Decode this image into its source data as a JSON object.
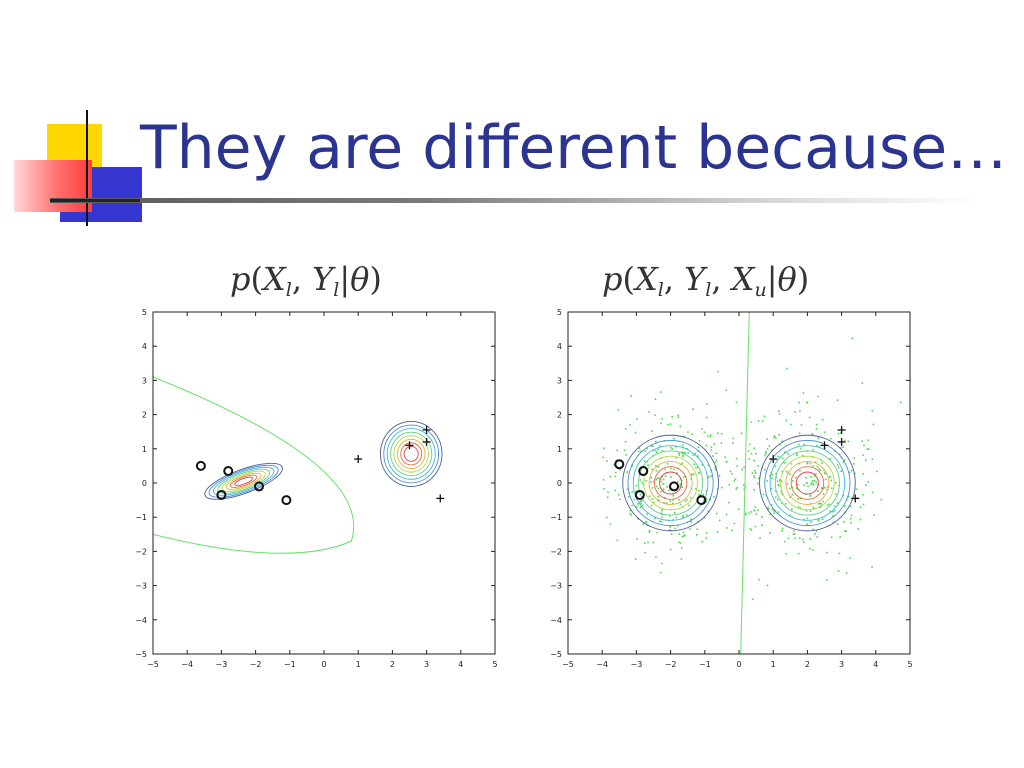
{
  "slide": {
    "title": "They are different because…"
  },
  "plots": [
    {
      "caption": {
        "func": "p",
        "vars": [
          [
            "X",
            "l"
          ],
          [
            "Y",
            "l"
          ]
        ],
        "param": "θ"
      },
      "xticks": [
        "−5",
        "−4",
        "−3",
        "−2",
        "−1",
        "0",
        "1",
        "2",
        "3",
        "4",
        "5"
      ],
      "yticks": [
        "5",
        "4",
        "3",
        "2",
        "1",
        "0",
        "−1",
        "−2",
        "−3",
        "−4",
        "−5"
      ]
    },
    {
      "caption": {
        "func": "p",
        "vars": [
          [
            "X",
            "l"
          ],
          [
            "Y",
            "l"
          ],
          [
            "X",
            "u"
          ]
        ],
        "param": "θ"
      },
      "xticks": [
        "−5",
        "−4",
        "−3",
        "−2",
        "−1",
        "0",
        "1",
        "2",
        "3",
        "4",
        "5"
      ],
      "yticks": [
        "5",
        "4",
        "3",
        "2",
        "1",
        "0",
        "−1",
        "−2",
        "−3",
        "−4",
        "−5"
      ]
    }
  ],
  "chart_data": [
    {
      "type": "scatter",
      "xlim": [
        -5,
        5
      ],
      "ylim": [
        -5,
        5
      ],
      "labeled_class_o": [
        [
          -3.6,
          0.5
        ],
        [
          -2.8,
          0.35
        ],
        [
          -3.0,
          -0.35
        ],
        [
          -1.9,
          -0.1
        ],
        [
          -1.1,
          -0.5
        ]
      ],
      "labeled_class_plus": [
        [
          1.0,
          0.7
        ],
        [
          2.5,
          1.1
        ],
        [
          3.0,
          1.55
        ],
        [
          3.0,
          1.2
        ],
        [
          3.4,
          -0.45
        ]
      ],
      "gaussian_o": {
        "cx": -2.35,
        "cy": 0.05,
        "rx": 1.2,
        "ry": 0.35,
        "angle_deg": -20
      },
      "gaussian_plus": {
        "cx": 2.55,
        "cy": 0.85,
        "rx": 0.9,
        "ry": 0.95,
        "angle_deg": 0
      },
      "boundary": "curved"
    },
    {
      "type": "scatter",
      "xlim": [
        -5,
        5
      ],
      "ylim": [
        -5,
        5
      ],
      "labeled_class_o": [
        [
          -3.5,
          0.55
        ],
        [
          -2.8,
          0.35
        ],
        [
          -2.9,
          -0.35
        ],
        [
          -1.9,
          -0.1
        ],
        [
          -1.1,
          -0.5
        ]
      ],
      "labeled_class_plus": [
        [
          1.0,
          0.7
        ],
        [
          2.5,
          1.1
        ],
        [
          3.0,
          1.55
        ],
        [
          3.0,
          1.2
        ],
        [
          3.4,
          -0.45
        ]
      ],
      "unlabeled_clusters": [
        {
          "cx": -2,
          "cy": 0,
          "spread": 1.4,
          "count": 330
        },
        {
          "cx": 2,
          "cy": 0,
          "spread": 1.4,
          "count": 330
        }
      ],
      "gaussian_o": {
        "cx": -2,
        "cy": 0,
        "rx": 1.4,
        "ry": 1.4,
        "angle_deg": 0
      },
      "gaussian_plus": {
        "cx": 2,
        "cy": 0,
        "rx": 1.4,
        "ry": 1.4,
        "angle_deg": 0
      },
      "boundary": "near-vertical line x≈0"
    }
  ]
}
